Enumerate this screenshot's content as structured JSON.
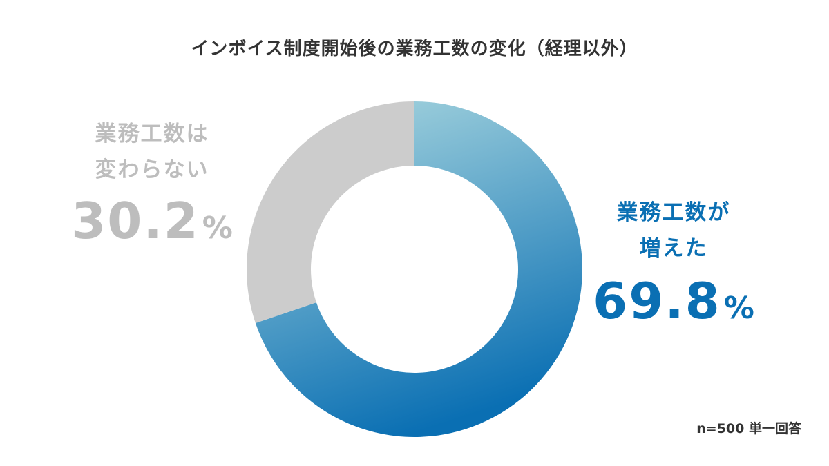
{
  "chart_data": {
    "type": "pie",
    "title": "インボイス制度開始後の業務工数の変化（経理以外）",
    "unit": "%",
    "slices": [
      {
        "label_lines": [
          "業務工数が",
          "増えた"
        ],
        "value": 69.8,
        "value_text": "69.8",
        "colors": [
          "#9fd0dc",
          "#0a6fb3"
        ],
        "text_color": "#0a6fb3"
      },
      {
        "label_lines": [
          "業務工数は",
          "変わらない"
        ],
        "value": 30.2,
        "value_text": "30.2",
        "colors": [
          "#cccccc"
        ],
        "text_color": "#bdbdbd"
      }
    ],
    "start_angle": "12 o'clock",
    "direction": "clockwise",
    "donut_hole": true,
    "note": "n=500 単一回答"
  }
}
